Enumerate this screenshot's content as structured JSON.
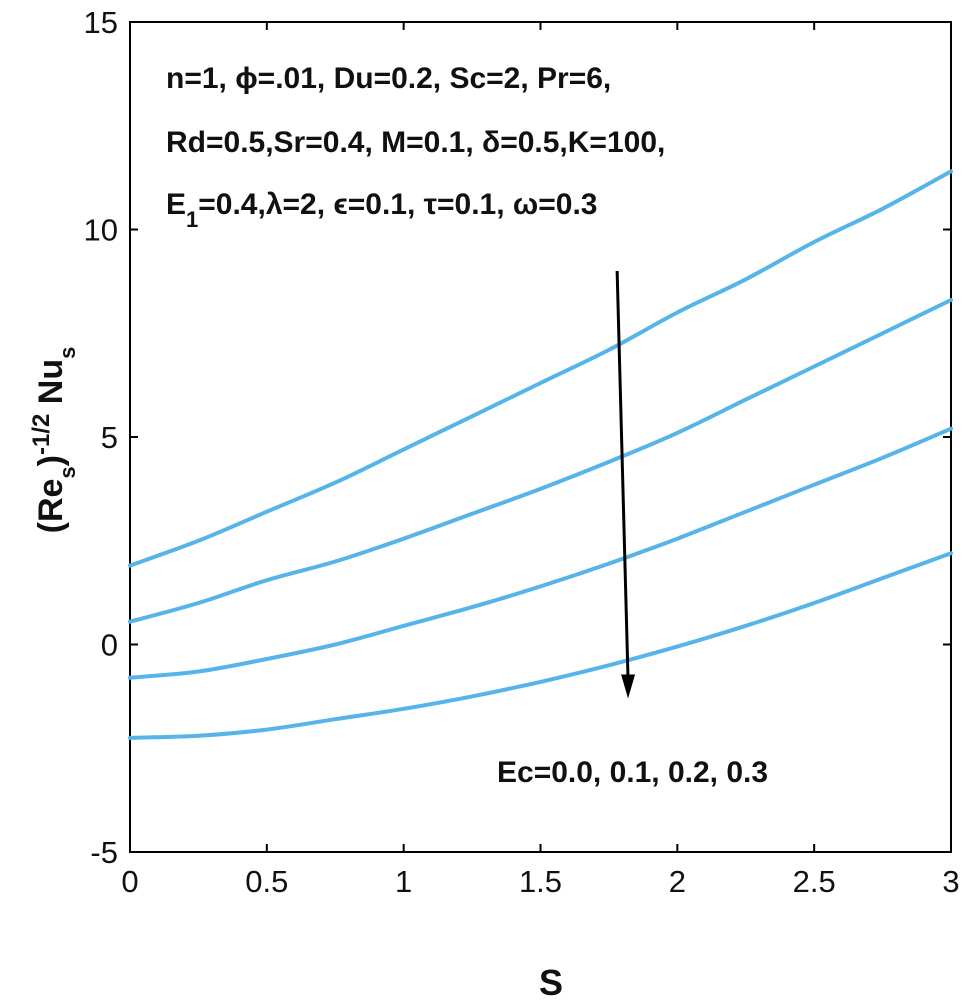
{
  "chart_data": {
    "type": "line",
    "xlabel": "S",
    "ylabel": {
      "base": "(Re",
      "sub1": "s",
      "mid": ")",
      "sup": "-1/2",
      "tail": " Nu",
      "sub2": "s"
    },
    "xlim": [
      0,
      3
    ],
    "ylim": [
      -5,
      15
    ],
    "x_ticks": [
      "0",
      "0.5",
      "1",
      "1.5",
      "2",
      "2.5",
      "3"
    ],
    "y_ticks": [
      "-5",
      "0",
      "5",
      "10",
      "15"
    ],
    "grid": false,
    "line_color": "#56B4E9",
    "x": [
      0,
      0.25,
      0.5,
      0.75,
      1.0,
      1.25,
      1.5,
      1.75,
      2.0,
      2.25,
      2.5,
      2.75,
      3.0
    ],
    "series": [
      {
        "values": [
          1.9,
          2.5,
          3.2,
          3.9,
          4.7,
          5.5,
          6.3,
          7.1,
          8.0,
          8.8,
          9.7,
          10.5,
          11.4
        ]
      },
      {
        "values": [
          0.55,
          1.0,
          1.55,
          2.0,
          2.55,
          3.15,
          3.75,
          4.4,
          5.1,
          5.9,
          6.7,
          7.5,
          8.3
        ]
      },
      {
        "values": [
          -0.8,
          -0.65,
          -0.35,
          0.0,
          0.45,
          0.9,
          1.4,
          1.95,
          2.55,
          3.2,
          3.85,
          4.5,
          5.2
        ]
      },
      {
        "values": [
          -2.25,
          -2.2,
          -2.05,
          -1.8,
          -1.55,
          -1.25,
          -0.9,
          -0.5,
          -0.05,
          0.45,
          1.0,
          1.6,
          2.2
        ]
      }
    ],
    "annotations": {
      "params_line1": "n=1, ϕ=.01, Du=0.2, Sc=2,  Pr=6,",
      "params_line2": "Rd=0.5,Sr=0.4, M=0.1, δ=0.5,K=100,",
      "params_line3_a": "E",
      "params_line3_sub": "1",
      "params_line3_b": "=0.4,λ=2, ϵ=0.1, τ=0.1, ω=0.3",
      "ec_label": "Ec=0.0, 0.1, 0.2, 0.3"
    },
    "arrow": {
      "from": [
        1.78,
        9.0
      ],
      "to": [
        1.82,
        -1.3
      ]
    }
  }
}
